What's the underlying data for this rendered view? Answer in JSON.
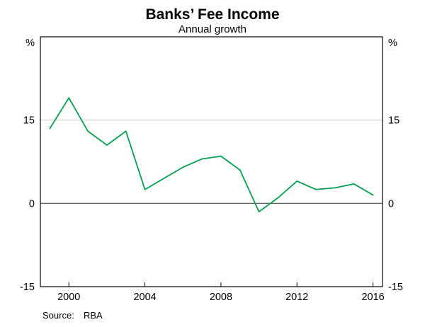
{
  "header": {
    "title": "Banks’ Fee Income",
    "subtitle": "Annual growth"
  },
  "footer": {
    "source_label": "Source:",
    "source_value": "RBA"
  },
  "chart_data": {
    "type": "line",
    "title": "Banks’ Fee Income",
    "subtitle": "Annual growth",
    "x": [
      1999,
      2000,
      2001,
      2002,
      2003,
      2004,
      2005,
      2006,
      2007,
      2008,
      2009,
      2010,
      2011,
      2012,
      2013,
      2014,
      2015,
      2016
    ],
    "series": [
      {
        "name": "Banks' fee income annual growth",
        "color": "#00A04E",
        "values": [
          13.5,
          19,
          13,
          10.5,
          13,
          2.5,
          4.5,
          6.5,
          8,
          8.5,
          6,
          -1.5,
          1,
          4,
          2.5,
          2.8,
          3.5,
          1.5
        ]
      }
    ],
    "xlim": [
      1998.5,
      2016.5
    ],
    "ylim": [
      -15,
      30
    ],
    "x_ticks": [
      2000,
      2004,
      2008,
      2012,
      2016
    ],
    "y_ticks": [
      {
        "value": 15,
        "label": "15"
      },
      {
        "value": 0,
        "label": "0"
      },
      {
        "value": -15,
        "label": "-15"
      }
    ],
    "unit_label": "%",
    "gridlines": [
      15
    ],
    "zero_line": 0,
    "grid_color": "#c9c9c9",
    "zero_color": "#4d4d4d",
    "frame_color": "#000000",
    "legend": "none",
    "grid": "horizontal-only"
  }
}
